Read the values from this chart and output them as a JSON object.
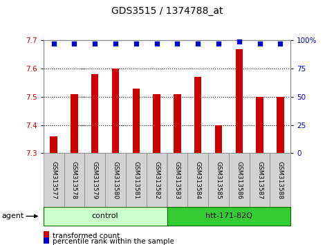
{
  "title": "GDS3515 / 1374788_at",
  "categories": [
    "GSM313577",
    "GSM313578",
    "GSM313579",
    "GSM313580",
    "GSM313581",
    "GSM313582",
    "GSM313583",
    "GSM313584",
    "GSM313585",
    "GSM313586",
    "GSM313587",
    "GSM313588"
  ],
  "bar_values": [
    7.36,
    7.51,
    7.58,
    7.6,
    7.53,
    7.51,
    7.51,
    7.57,
    7.4,
    7.67,
    7.5,
    7.5
  ],
  "percentile_values": [
    97,
    97,
    97,
    97,
    97,
    97,
    97,
    97,
    97,
    99,
    97,
    97
  ],
  "bar_color": "#cc0000",
  "dot_color": "#0000cc",
  "ylim_left": [
    7.3,
    7.7
  ],
  "ylim_right": [
    0,
    100
  ],
  "yticks_left": [
    7.3,
    7.4,
    7.5,
    7.6,
    7.7
  ],
  "yticks_right": [
    0,
    25,
    50,
    75,
    100
  ],
  "ytick_labels_right": [
    "0",
    "25",
    "50",
    "75",
    "100%"
  ],
  "groups": [
    {
      "label": "control",
      "start": 0,
      "end": 5,
      "color": "#ccffcc",
      "edgecolor": "#006600"
    },
    {
      "label": "htt-171-82Q",
      "start": 6,
      "end": 11,
      "color": "#33cc33",
      "edgecolor": "#006600"
    }
  ],
  "agent_label": "agent",
  "legend_bar_label": "transformed count",
  "legend_dot_label": "percentile rank within the sample",
  "axis_left_color": "#cc0000",
  "axis_right_color": "#0000cc",
  "bar_width": 0.35,
  "tick_bg_color": "#d3d3d3",
  "plot_area_bg": "#ffffff"
}
